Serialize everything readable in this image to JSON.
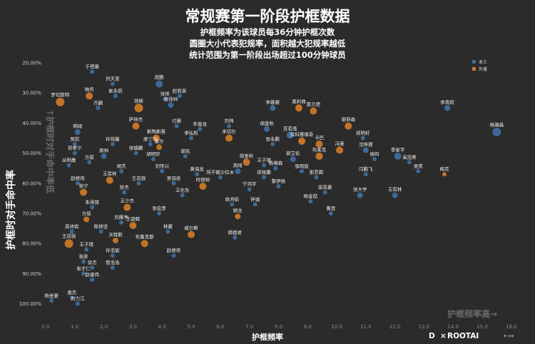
{
  "title": "常规赛第一阶段护框数据",
  "subtitle_lines": [
    "护框频率为该球员每36分钟护框次数",
    "圆圈大小代表犯规率，面积越大犯规率越低",
    "统计范围为第一阶段出场超过100分钟球员"
  ],
  "annotations": {
    "x_direction": "护框频率高→",
    "y_direction": "↑护框时对手命中率低"
  },
  "branding": {
    "left": "D",
    "x": "×",
    "right": "ROOTAI",
    "right_sub": "萝卜体育"
  },
  "colors": {
    "background": "#2b2b2b",
    "local": "#3f6f9f",
    "foreign": "#cf7a26"
  },
  "chart_data": {
    "type": "scatter",
    "xlabel": "护框频率",
    "ylabel": "护框时对手命中率",
    "x_range": [
      0,
      16
    ],
    "y_range": [
      0.18,
      1.02
    ],
    "y_inverted": true,
    "x_ticks": [
      "0.0",
      "1.0",
      "2.0",
      "3.0",
      "4.0",
      "5.0",
      "6.0",
      "7.0",
      "8.0",
      "9.0",
      "10.0",
      "11.0",
      "12.0",
      "13.0",
      "14.0",
      "15.0",
      "16.0"
    ],
    "y_ticks": [
      "20.00%",
      "30.00%",
      "40.00%",
      "50.00%",
      "60.00%",
      "70.00%",
      "80.00%",
      "90.00%",
      "100.00%"
    ],
    "grid": false,
    "legend": {
      "position": "top-right",
      "entries": [
        {
          "name": "本土",
          "color": "#3f6f9f"
        },
        {
          "name": "外援",
          "color": "#cf7a26"
        }
      ]
    },
    "points": [
      {
        "name": "于德豪",
        "x": 1.6,
        "y": 0.23,
        "type": "本土",
        "r": 3
      },
      {
        "name": "刘天意",
        "x": 2.3,
        "y": 0.27,
        "type": "本土",
        "r": 3
      },
      {
        "name": "周鹏",
        "x": 3.9,
        "y": 0.27,
        "type": "本土",
        "r": 5
      },
      {
        "name": "梅肯",
        "x": 1.5,
        "y": 0.31,
        "type": "外援",
        "r": 5
      },
      {
        "name": "崔永熙",
        "x": 2.4,
        "y": 0.31,
        "type": "本土",
        "r": 3
      },
      {
        "name": "罗切斯特",
        "x": 0.5,
        "y": 0.33,
        "type": "外援",
        "r": 6
      },
      {
        "name": "齐麟",
        "x": 1.8,
        "y": 0.35,
        "type": "本土",
        "r": 3
      },
      {
        "name": "琼斯",
        "x": 3.2,
        "y": 0.35,
        "type": "外援",
        "r": 6
      },
      {
        "name": "张帅",
        "x": 4.1,
        "y": 0.32,
        "type": "本土",
        "r": 3
      },
      {
        "name": "张佳帅",
        "x": 4.3,
        "y": 0.34,
        "type": "本土",
        "r": 4
      },
      {
        "name": "赵岩昊",
        "x": 4.6,
        "y": 0.31,
        "type": "本土",
        "r": 3
      },
      {
        "name": "李慕豪",
        "x": 7.8,
        "y": 0.35,
        "type": "本土",
        "r": 4
      },
      {
        "name": "奥利弗",
        "x": 8.7,
        "y": 0.35,
        "type": "外援",
        "r": 5
      },
      {
        "name": "莫兰德",
        "x": 9.2,
        "y": 0.36,
        "type": "外援",
        "r": 5
      },
      {
        "name": "李禹熙",
        "x": 13.8,
        "y": 0.35,
        "type": "本土",
        "r": 4
      },
      {
        "name": "萨林杰",
        "x": 3.1,
        "y": 0.41,
        "type": "外援",
        "r": 5
      },
      {
        "name": "付豪",
        "x": 4.5,
        "y": 0.41,
        "type": "本土",
        "r": 3
      },
      {
        "name": "朱俊龙",
        "x": 5.3,
        "y": 0.42,
        "type": "本土",
        "r": 3
      },
      {
        "name": "刘炜",
        "x": 6.3,
        "y": 0.41,
        "type": "本土",
        "r": 3
      },
      {
        "name": "胡金秋",
        "x": 7.6,
        "y": 0.42,
        "type": "本土",
        "r": 4
      },
      {
        "name": "谢菲森",
        "x": 10.4,
        "y": 0.41,
        "type": "外援",
        "r": 5
      },
      {
        "name": "杨瀚森",
        "x": 15.5,
        "y": 0.43,
        "type": "本土",
        "r": 6
      },
      {
        "name": "韩硕",
        "x": 1.1,
        "y": 0.43,
        "type": "本土",
        "r": 4
      },
      {
        "name": "斯陶斯基",
        "x": 3.8,
        "y": 0.45,
        "type": "外援",
        "r": 5
      },
      {
        "name": "李弘权",
        "x": 5.0,
        "y": 0.45,
        "type": "本土",
        "r": 3
      },
      {
        "name": "米切尔",
        "x": 6.3,
        "y": 0.45,
        "type": "外援",
        "r": 5
      },
      {
        "name": "张永鹏",
        "x": 7.8,
        "y": 0.47,
        "type": "本土",
        "r": 3
      },
      {
        "name": "苏若禹",
        "x": 8.4,
        "y": 0.44,
        "type": "本土",
        "r": 5
      },
      {
        "name": "拉科塞维奇",
        "x": 8.8,
        "y": 0.46,
        "type": "外援",
        "r": 5
      },
      {
        "name": "卡巴",
        "x": 9.4,
        "y": 0.47,
        "type": "外援",
        "r": 5
      },
      {
        "name": "胡明轩",
        "x": 10.9,
        "y": 0.45,
        "type": "本土",
        "r": 3
      },
      {
        "name": "冯莱",
        "x": 10.1,
        "y": 0.49,
        "type": "外援",
        "r": 5
      },
      {
        "name": "沈梓捷",
        "x": 11.0,
        "y": 0.49,
        "type": "本土",
        "r": 4
      },
      {
        "name": "吴前",
        "x": 1.0,
        "y": 0.47,
        "type": "本土",
        "r": 3
      },
      {
        "name": "孙铭徽",
        "x": 2.3,
        "y": 0.47,
        "type": "本土",
        "r": 3
      },
      {
        "name": "廖三宁",
        "x": 3.6,
        "y": 0.47,
        "type": "本土",
        "r": 3
      },
      {
        "name": "夏尔",
        "x": 3.9,
        "y": 0.48,
        "type": "外援",
        "r": 4
      },
      {
        "name": "贺希宁",
        "x": 1.0,
        "y": 0.5,
        "type": "本土",
        "r": 3
      },
      {
        "name": "张镇麟",
        "x": 3.1,
        "y": 0.5,
        "type": "本土",
        "r": 3
      },
      {
        "name": "原帅",
        "x": 2.0,
        "y": 0.51,
        "type": "本土",
        "r": 4
      },
      {
        "name": "胡明轩",
        "x": 3.7,
        "y": 0.52,
        "type": "本土",
        "r": 3
      },
      {
        "name": "郭凯",
        "x": 4.8,
        "y": 0.51,
        "type": "本土",
        "r": 3
      },
      {
        "name": "胡金秋",
        "x": 6.9,
        "y": 0.53,
        "type": "外援",
        "r": 5
      },
      {
        "name": "王子瑞",
        "x": 7.5,
        "y": 0.54,
        "type": "本土",
        "r": 3
      },
      {
        "name": "郭艾伦",
        "x": 8.5,
        "y": 0.52,
        "type": "本土",
        "r": 4
      },
      {
        "name": "布莱克",
        "x": 9.4,
        "y": 0.51,
        "type": "外援",
        "r": 5
      },
      {
        "name": "杨鸣",
        "x": 11.3,
        "y": 0.52,
        "type": "本土",
        "r": 3
      },
      {
        "name": "李星宇",
        "x": 12.1,
        "y": 0.51,
        "type": "本土",
        "r": 5
      },
      {
        "name": "吴冠希",
        "x": 12.5,
        "y": 0.53,
        "type": "本土",
        "r": 3
      },
      {
        "name": "丛明晨",
        "x": 0.8,
        "y": 0.54,
        "type": "本土",
        "r": 3
      },
      {
        "name": "方硕",
        "x": 1.5,
        "y": 0.53,
        "type": "本土",
        "r": 3
      },
      {
        "name": "胡杰",
        "x": 2.6,
        "y": 0.56,
        "type": "本土",
        "r": 3
      },
      {
        "name": "刘传兴",
        "x": 4.0,
        "y": 0.56,
        "type": "本土",
        "r": 3
      },
      {
        "name": "黄海龙",
        "x": 5.2,
        "y": 0.57,
        "type": "本土",
        "r": 3
      },
      {
        "name": "周琦",
        "x": 6.6,
        "y": 0.56,
        "type": "本土",
        "r": 4
      },
      {
        "name": "杨瀚森",
        "x": 7.9,
        "y": 0.55,
        "type": "本土",
        "r": 3
      },
      {
        "name": "邹雨宸",
        "x": 8.8,
        "y": 0.56,
        "type": "本土",
        "r": 3
      },
      {
        "name": "阿不都沙拉木",
        "x": 6.0,
        "y": 0.58,
        "type": "本土",
        "r": 3
      },
      {
        "name": "祝铭震",
        "x": 7.5,
        "y": 0.58,
        "type": "本土",
        "r": 3
      },
      {
        "name": "那苏图",
        "x": 9.3,
        "y": 0.58,
        "type": "本土",
        "r": 3
      },
      {
        "name": "闫鹏飞",
        "x": 11.0,
        "y": 0.57,
        "type": "本土",
        "r": 3
      },
      {
        "name": "吴昊",
        "x": 12.8,
        "y": 0.56,
        "type": "本土",
        "r": 3
      },
      {
        "name": "梅克",
        "x": 13.7,
        "y": 0.57,
        "type": "外援",
        "r": 3
      },
      {
        "name": "赵继伟",
        "x": 1.1,
        "y": 0.6,
        "type": "本土",
        "r": 3
      },
      {
        "name": "王哲林",
        "x": 2.2,
        "y": 0.59,
        "type": "外援",
        "r": 5
      },
      {
        "name": "王岚嵚",
        "x": 3.2,
        "y": 0.6,
        "type": "本土",
        "r": 3
      },
      {
        "name": "吴羽佳",
        "x": 4.4,
        "y": 0.6,
        "type": "本土",
        "r": 3
      },
      {
        "name": "时德帅",
        "x": 5.4,
        "y": 0.61,
        "type": "外援",
        "r": 5
      },
      {
        "name": "宁鸿宇",
        "x": 7.0,
        "y": 0.62,
        "type": "本土",
        "r": 3
      },
      {
        "name": "黎伊扬",
        "x": 8.0,
        "y": 0.61,
        "type": "本土",
        "r": 3
      },
      {
        "name": "梁英豪",
        "x": 9.6,
        "y": 0.63,
        "type": "本土",
        "r": 3
      },
      {
        "name": "张大宇",
        "x": 10.8,
        "y": 0.64,
        "type": "本土",
        "r": 4
      },
      {
        "name": "王哲林",
        "x": 12.0,
        "y": 0.64,
        "type": "本土",
        "r": 4
      },
      {
        "name": "张宁",
        "x": 1.3,
        "y": 0.63,
        "type": "外援",
        "r": 5
      },
      {
        "name": "徐杰",
        "x": 2.7,
        "y": 0.63,
        "type": "本土",
        "r": 3
      },
      {
        "name": "王化东",
        "x": 4.7,
        "y": 0.64,
        "type": "本土",
        "r": 3
      },
      {
        "name": "杨金喆",
        "x": 9.1,
        "y": 0.66,
        "type": "本土",
        "r": 3
      },
      {
        "name": "商鸿韬",
        "x": 6.4,
        "y": 0.67,
        "type": "本土",
        "r": 3
      },
      {
        "name": "钟诚",
        "x": 7.2,
        "y": 0.67,
        "type": "本土",
        "r": 3
      },
      {
        "name": "鲁登",
        "x": 9.8,
        "y": 0.7,
        "type": "本土",
        "r": 3
      },
      {
        "name": "朱荣振",
        "x": 1.6,
        "y": 0.68,
        "type": "本土",
        "r": 3
      },
      {
        "name": "王少杰",
        "x": 2.8,
        "y": 0.68,
        "type": "外援",
        "r": 5
      },
      {
        "name": "张宏彦",
        "x": 3.9,
        "y": 0.7,
        "type": "本土",
        "r": 3
      },
      {
        "name": "顾全",
        "x": 6.6,
        "y": 0.71,
        "type": "外援",
        "r": 4
      },
      {
        "name": "方硕",
        "x": 1.4,
        "y": 0.72,
        "type": "外援",
        "r": 4
      },
      {
        "name": "刘雁宇",
        "x": 2.6,
        "y": 0.73,
        "type": "本土",
        "r": 3
      },
      {
        "name": "王骁辉",
        "x": 3.0,
        "y": 0.74,
        "type": "外援",
        "r": 5
      },
      {
        "name": "高诗岩",
        "x": 0.9,
        "y": 0.76,
        "type": "本土",
        "r": 3
      },
      {
        "name": "陈林坚",
        "x": 1.9,
        "y": 0.76,
        "type": "本土",
        "r": 3
      },
      {
        "name": "林葳",
        "x": 4.2,
        "y": 0.76,
        "type": "本土",
        "r": 3
      },
      {
        "name": "威尔斯",
        "x": 5.0,
        "y": 0.77,
        "type": "外援",
        "r": 5
      },
      {
        "name": "王岚嵚",
        "x": 0.8,
        "y": 0.8,
        "type": "外援",
        "r": 6
      },
      {
        "name": "沃特斯",
        "x": 2.4,
        "y": 0.79,
        "type": "外援",
        "r": 4
      },
      {
        "name": "布鲁克斯",
        "x": 3.4,
        "y": 0.8,
        "type": "外援",
        "r": 5
      },
      {
        "name": "韩德君",
        "x": 6.5,
        "y": 0.78,
        "type": "本土",
        "r": 3
      },
      {
        "name": "王子瑞",
        "x": 1.4,
        "y": 0.82,
        "type": "本土",
        "r": 3
      },
      {
        "name": "孙浩宸",
        "x": 2.3,
        "y": 0.84,
        "type": "本土",
        "r": 3
      },
      {
        "name": "赵继伟",
        "x": 4.4,
        "y": 0.84,
        "type": "本土",
        "r": 3
      },
      {
        "name": "张彦",
        "x": 1.3,
        "y": 0.86,
        "type": "本土",
        "r": 3
      },
      {
        "name": "徐杰",
        "x": 1.6,
        "y": 0.88,
        "type": "本土",
        "r": 3
      },
      {
        "name": "管浩洛",
        "x": 2.3,
        "y": 0.88,
        "type": "本土",
        "r": 3
      },
      {
        "name": "张才仁",
        "x": 1.3,
        "y": 0.9,
        "type": "本土",
        "r": 3
      },
      {
        "name": "赵睿伟",
        "x": 1.6,
        "y": 0.92,
        "type": "本土",
        "r": 3
      },
      {
        "name": "杨金豪",
        "x": 0.2,
        "y": 0.99,
        "type": "本土",
        "r": 3
      },
      {
        "name": "唐杰",
        "x": 0.9,
        "y": 0.98,
        "type": "本土",
        "r": 3
      },
      {
        "name": "刘力江",
        "x": 1.1,
        "y": 1.0,
        "type": "本土",
        "r": 3
      }
    ]
  }
}
